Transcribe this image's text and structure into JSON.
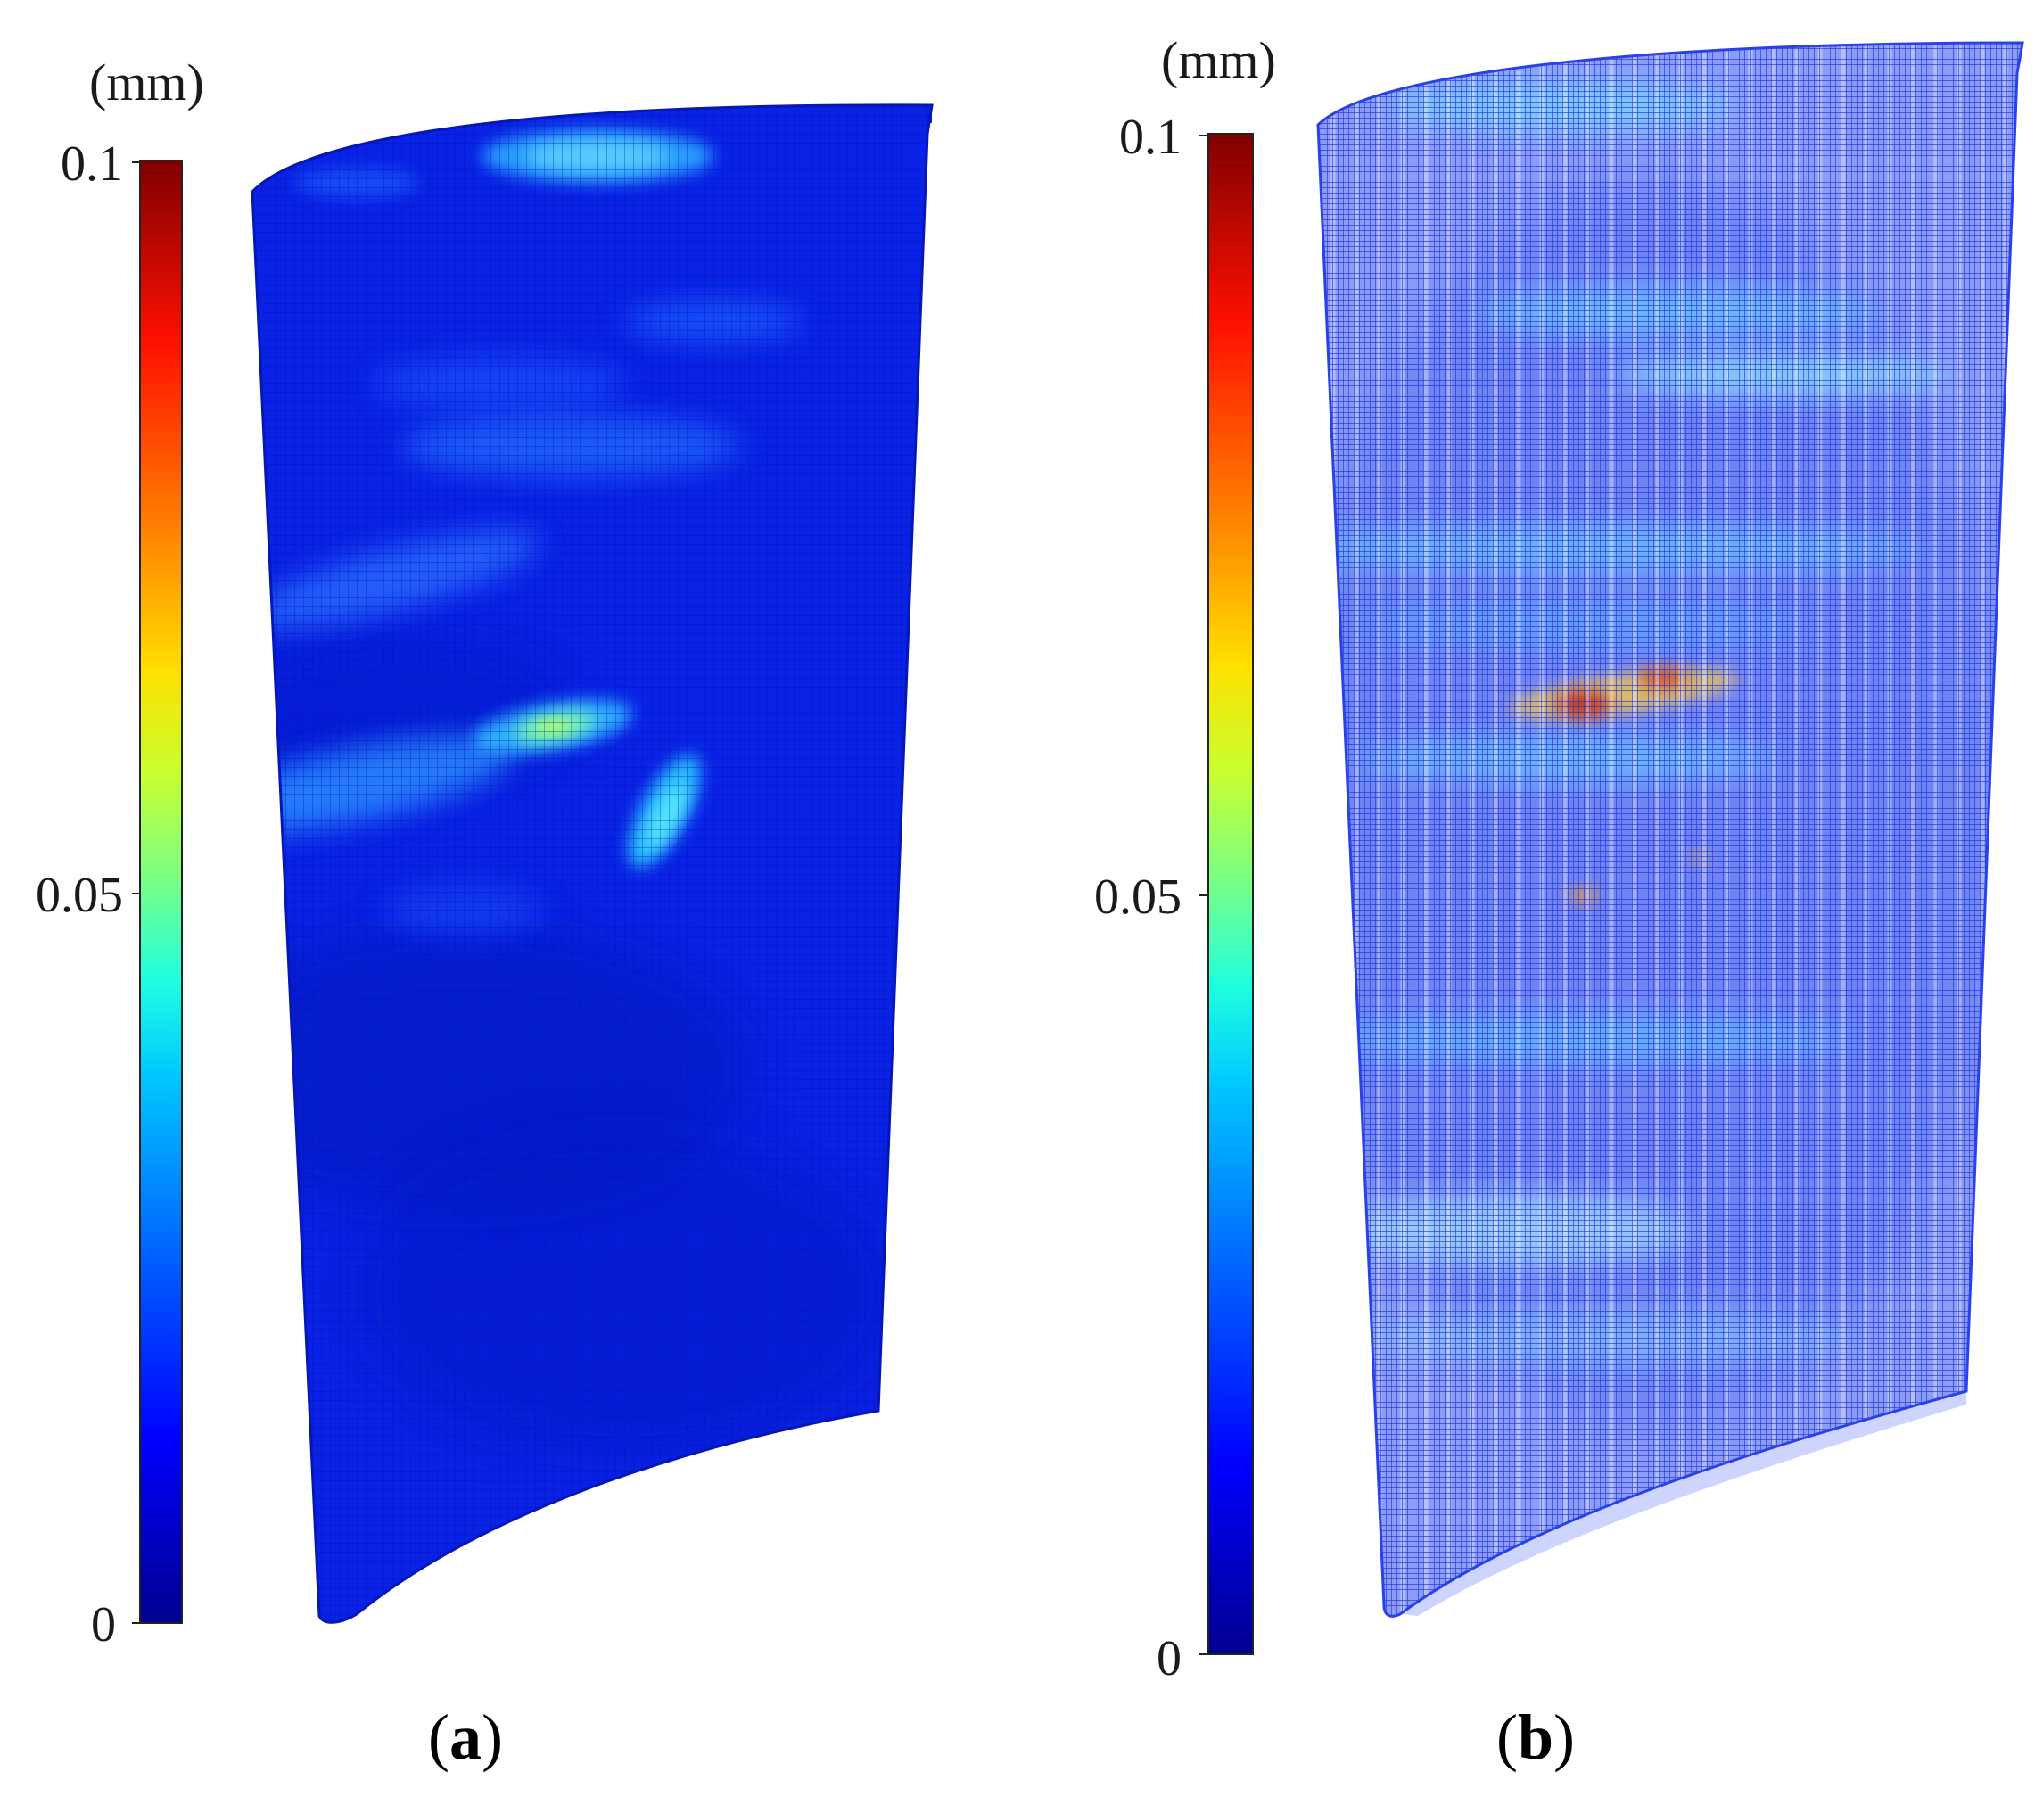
{
  "figure": {
    "colorscale": [
      "#00008f",
      "#0000ff",
      "#0080ff",
      "#00ffff",
      "#80ff80",
      "#ffff00",
      "#ff8000",
      "#ff0000",
      "#800000"
    ],
    "panels": [
      {
        "id": "a",
        "label_open": "(",
        "label_letter": "a",
        "label_close": ")",
        "colorbar": {
          "unit": "(mm)",
          "ticks": [
            "0.1",
            "0.05",
            "0"
          ],
          "min": 0,
          "max": 0.1
        },
        "surface_style": "solid-mesh",
        "base_color": "#0a22e6"
      },
      {
        "id": "b",
        "label_open": "(",
        "label_letter": "b",
        "label_close": ")",
        "colorbar": {
          "unit": "(mm)",
          "ticks": [
            "0.1",
            "0.05",
            "0"
          ],
          "min": 0,
          "max": 0.1
        },
        "surface_style": "wireframe-mesh",
        "base_color": "#3a5cf0"
      }
    ]
  }
}
